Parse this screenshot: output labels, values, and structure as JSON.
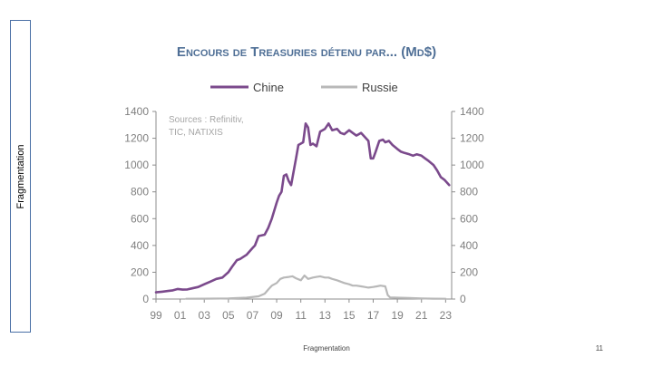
{
  "slide": {
    "side_label": "Fragmentation",
    "footer": "Fragmentation",
    "page_number": "11"
  },
  "chart_data": {
    "type": "line",
    "title": "Encours de Treasuries détenu par... (Md$)",
    "source_note": [
      "Sources : Refinitiv,",
      "TIC, NATIXIS"
    ],
    "legend_position": "top",
    "ylim": [
      0,
      1400
    ],
    "y_ticks": [
      0,
      200,
      400,
      600,
      800,
      1000,
      1200,
      1400
    ],
    "x_tick_labels": [
      "99",
      "01",
      "03",
      "05",
      "07",
      "09",
      "11",
      "13",
      "15",
      "17",
      "19",
      "21",
      "23"
    ],
    "xlim": [
      1999,
      2023.5
    ],
    "grid": false,
    "series": [
      {
        "name": "Chine",
        "color": "#7b4a8c",
        "x": [
          1999.0,
          1999.5,
          2000.0,
          2000.4,
          2000.8,
          2001.2,
          2001.6,
          2002.0,
          2002.5,
          2003.0,
          2003.5,
          2004.0,
          2004.5,
          2005.0,
          2005.3,
          2005.7,
          2006.0,
          2006.5,
          2007.0,
          2007.2,
          2007.5,
          2008.0,
          2008.3,
          2008.6,
          2008.8,
          2009.0,
          2009.2,
          2009.4,
          2009.6,
          2009.8,
          2010.0,
          2010.2,
          2010.4,
          2010.6,
          2010.8,
          2011.0,
          2011.2,
          2011.4,
          2011.6,
          2011.8,
          2012.0,
          2012.3,
          2012.6,
          2013.0,
          2013.3,
          2013.6,
          2014.0,
          2014.3,
          2014.6,
          2015.0,
          2015.3,
          2015.6,
          2016.0,
          2016.3,
          2016.6,
          2016.8,
          2017.0,
          2017.2,
          2017.5,
          2017.8,
          2018.0,
          2018.3,
          2018.6,
          2019.0,
          2019.3,
          2019.6,
          2020.0,
          2020.3,
          2020.6,
          2021.0,
          2021.3,
          2021.6,
          2022.0,
          2022.3,
          2022.6,
          2022.9,
          2023.1,
          2023.3
        ],
        "values": [
          50,
          55,
          60,
          65,
          75,
          70,
          72,
          80,
          90,
          110,
          130,
          150,
          160,
          200,
          240,
          290,
          300,
          330,
          380,
          400,
          470,
          480,
          530,
          600,
          660,
          720,
          770,
          800,
          920,
          930,
          880,
          850,
          950,
          1050,
          1150,
          1160,
          1170,
          1310,
          1280,
          1150,
          1160,
          1140,
          1250,
          1270,
          1310,
          1260,
          1270,
          1240,
          1230,
          1260,
          1240,
          1220,
          1240,
          1210,
          1180,
          1050,
          1050,
          1100,
          1180,
          1190,
          1170,
          1180,
          1150,
          1120,
          1100,
          1090,
          1080,
          1070,
          1080,
          1070,
          1050,
          1030,
          1000,
          960,
          910,
          890,
          870,
          850
        ]
      },
      {
        "name": "Russie",
        "color": "#b8b8b8",
        "x": [
          2001.5,
          2003.0,
          2005.0,
          2006.5,
          2007.5,
          2008.0,
          2008.3,
          2008.6,
          2009.0,
          2009.3,
          2009.6,
          2010.0,
          2010.3,
          2010.6,
          2011.0,
          2011.3,
          2011.6,
          2012.0,
          2012.3,
          2012.6,
          2013.0,
          2013.3,
          2013.6,
          2014.0,
          2014.3,
          2014.6,
          2015.0,
          2015.3,
          2015.6,
          2016.0,
          2016.3,
          2016.6,
          2017.0,
          2017.3,
          2017.6,
          2018.0,
          2018.2,
          2018.4,
          2019.0,
          2020.0,
          2021.0,
          2022.0,
          2023.0
        ],
        "values": [
          2,
          3,
          5,
          10,
          20,
          40,
          70,
          100,
          120,
          150,
          160,
          165,
          170,
          155,
          140,
          175,
          150,
          160,
          165,
          170,
          160,
          160,
          150,
          140,
          130,
          120,
          110,
          100,
          100,
          95,
          90,
          85,
          90,
          95,
          100,
          95,
          30,
          12,
          10,
          8,
          5,
          3,
          2
        ]
      }
    ]
  }
}
